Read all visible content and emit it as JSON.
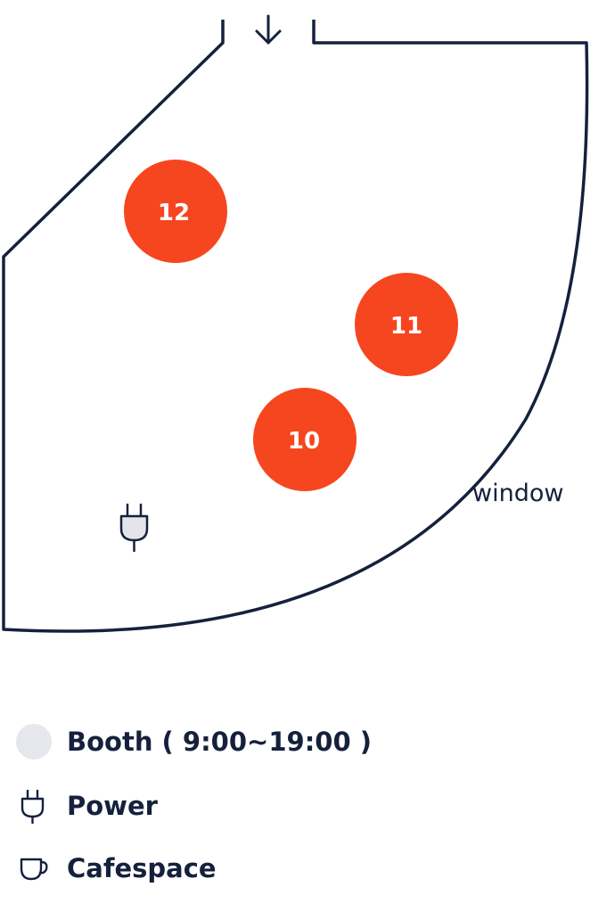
{
  "map": {
    "entrance_arrow": "arrow-down-icon",
    "window_label": "window",
    "booths": [
      {
        "number": "12",
        "color": "#f6461f"
      },
      {
        "number": "11",
        "color": "#f6461f"
      },
      {
        "number": "10",
        "color": "#f6461f"
      }
    ],
    "outline_color": "#15213c",
    "power_outlets": 1
  },
  "legend": {
    "items": [
      {
        "icon": "booth-circle-icon",
        "label": "Booth ( 9:00~19:00 )",
        "color": "#e6e7ec"
      },
      {
        "icon": "plug-icon",
        "label": "Power"
      },
      {
        "icon": "cup-icon",
        "label": "Cafespace"
      }
    ]
  }
}
